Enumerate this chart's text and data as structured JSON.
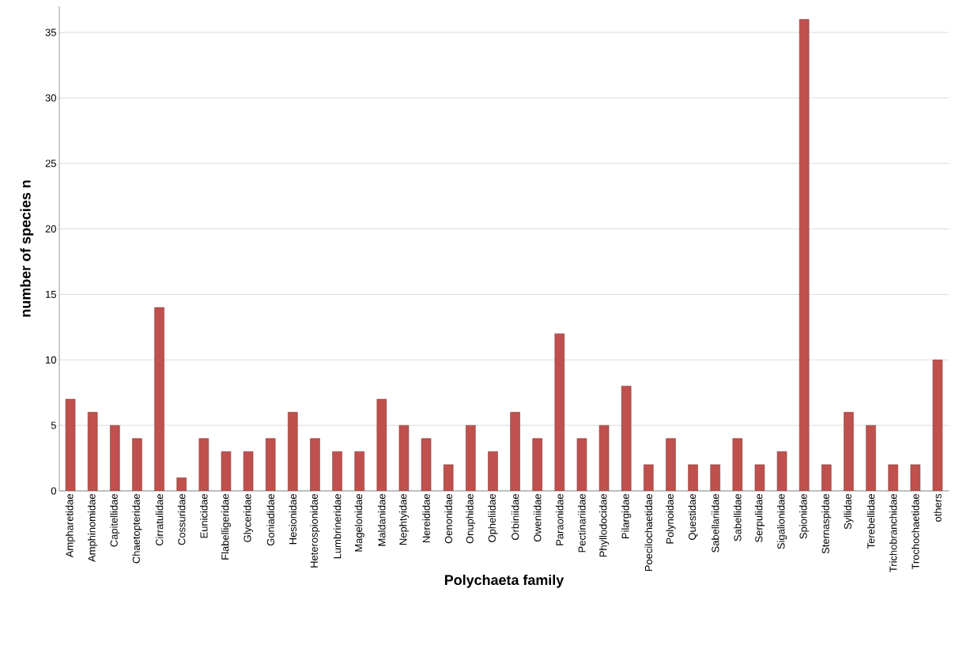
{
  "chart_data": {
    "type": "bar",
    "xlabel": "Polychaeta family",
    "ylabel": "number of species n",
    "categories": [
      "Ampharetidae",
      "Amphinomidae",
      "Capitellidae",
      "Chaetopteridae",
      "Cirratulidae",
      "Cossuridae",
      "Eunicidae",
      "Flabelligeridae",
      "Glyceridae",
      "Goniadidae",
      "Hesionidae",
      "Heterospionidae",
      "Lumbrineridae",
      "Magelonidae",
      "Maldanidae",
      "Nephtyidae",
      "Nereididae",
      "Oenonidae",
      "Onuphidae",
      "Opheliidae",
      "Orbiniidae",
      "Oweniidae",
      "Paraonidae",
      "Pectinariidae",
      "Phyllodocidae",
      "Pilargidae",
      "Poecilochaetidae",
      "Polynoidae",
      "Questidae",
      "Sabellariidae",
      "Sabellidae",
      "Serpulidae",
      "Sigalionidae",
      "Spionidae",
      "Sternaspidae",
      "Syllidae",
      "Terebellidae",
      "Trichobranchidae",
      "Trochochaetidae",
      "others"
    ],
    "values": [
      7,
      6,
      5,
      4,
      14,
      1,
      4,
      3,
      3,
      4,
      6,
      4,
      3,
      3,
      7,
      5,
      4,
      2,
      5,
      3,
      6,
      4,
      12,
      4,
      5,
      8,
      2,
      4,
      2,
      2,
      4,
      2,
      3,
      36,
      2,
      6,
      5,
      2,
      2,
      10
    ],
    "color": "#c0504d",
    "ylim": [
      0,
      37
    ],
    "yticks": [
      0,
      5,
      10,
      15,
      20,
      25,
      30,
      35
    ],
    "grid": "y"
  }
}
